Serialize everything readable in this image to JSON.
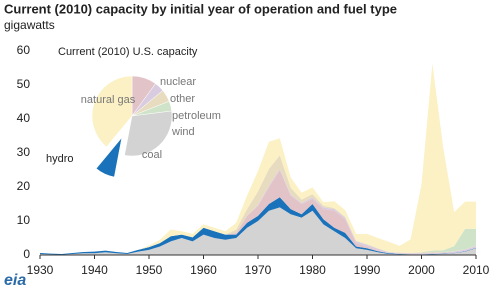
{
  "title": "Current (2010) capacity by initial  year of operation and fuel type",
  "subtitle": "gigawatts",
  "logo": "eia",
  "chart_data": [
    {
      "type": "stacked-area",
      "x": [
        1930,
        1932,
        1934,
        1936,
        1938,
        1940,
        1942,
        1944,
        1946,
        1948,
        1950,
        1952,
        1954,
        1956,
        1958,
        1960,
        1962,
        1964,
        1966,
        1968,
        1970,
        1972,
        1974,
        1976,
        1978,
        1980,
        1982,
        1984,
        1986,
        1988,
        1990,
        1992,
        1994,
        1996,
        1998,
        2000,
        2002,
        2004,
        2006,
        2008,
        2010
      ],
      "xlim": [
        1930,
        2010
      ],
      "xticks": [
        1930,
        1940,
        1950,
        1960,
        1970,
        1980,
        1990,
        2000,
        2010
      ],
      "ylim": [
        0,
        60
      ],
      "yticks": [
        0,
        10,
        20,
        30,
        40,
        50,
        60
      ],
      "series": [
        {
          "color": "#d3d3d3",
          "values": [
            0.3,
            0.2,
            0.1,
            0.3,
            0.5,
            0.5,
            0.8,
            0.5,
            0.3,
            1,
            1.5,
            2.5,
            4,
            5,
            4,
            6,
            5,
            4.5,
            5,
            8,
            10,
            13,
            14,
            12,
            11,
            13,
            9,
            7,
            5,
            2,
            1.5,
            0.8,
            0.3,
            0.2,
            0.1,
            0.1,
            0.2,
            0.3,
            0.5,
            1,
            2
          ]
        },
        {
          "color": "#1a72bb",
          "values": [
            0.3,
            0.2,
            0.2,
            0.3,
            0.4,
            0.5,
            0.5,
            0.4,
            0.3,
            0.5,
            0.8,
            1,
            1.5,
            1,
            1.2,
            2,
            2,
            1.5,
            1,
            1.5,
            1.5,
            2,
            3,
            1.5,
            1,
            2,
            1.5,
            1,
            1.5,
            0.5,
            0.5,
            0.3,
            0.2,
            0.1,
            0.1,
            0.1,
            0.1,
            0.1,
            0.1,
            0.1,
            0.1
          ]
        },
        {
          "color": "#e2c4c8",
          "values": [
            0,
            0,
            0,
            0,
            0,
            0,
            0,
            0,
            0,
            0,
            0,
            0,
            0,
            0,
            0,
            0,
            0,
            0,
            0.5,
            2,
            3,
            5,
            8,
            4,
            3,
            1.5,
            3,
            5,
            4,
            1,
            0.5,
            0.3,
            0,
            0,
            0,
            0,
            0,
            0,
            0,
            0,
            0
          ]
        },
        {
          "color": "#d9cce0",
          "values": [
            0,
            0,
            0,
            0,
            0,
            0,
            0,
            0,
            0,
            0,
            0,
            0,
            0,
            0,
            0,
            0,
            0,
            0,
            0,
            0,
            0.2,
            0.3,
            0.3,
            0.3,
            0.3,
            0.4,
            0.5,
            0.5,
            0.5,
            0.5,
            0.5,
            0.4,
            0.3,
            0.3,
            0.3,
            0.3,
            0.3,
            0.3,
            0.4,
            0.5,
            0.5
          ]
        },
        {
          "color": "#e8dcc0",
          "values": [
            0,
            0,
            0,
            0,
            0,
            0,
            0,
            0,
            0,
            0,
            0,
            0,
            0,
            0,
            0,
            0,
            0,
            0,
            1,
            2,
            4,
            5,
            4,
            2,
            1,
            1,
            0.5,
            0.3,
            0.2,
            0.2,
            0.2,
            0.2,
            0.1,
            0.1,
            0.1,
            0.2,
            0.3,
            0.2,
            0.1,
            0.1,
            0.1
          ]
        },
        {
          "color": "#cfe3c8",
          "values": [
            0,
            0,
            0,
            0,
            0,
            0,
            0,
            0,
            0,
            0,
            0,
            0,
            0,
            0,
            0,
            0,
            0,
            0,
            0,
            0,
            0,
            0,
            0,
            0,
            0,
            0,
            0,
            0,
            0,
            0,
            0,
            0,
            0,
            0,
            0,
            0.1,
            0.4,
            0.5,
            1.5,
            6,
            5
          ]
        },
        {
          "color": "#fbf1c4",
          "values": [
            0,
            0,
            0,
            0,
            0,
            0,
            0,
            0,
            0,
            0,
            0.5,
            1,
            2,
            1,
            1,
            1,
            1,
            1,
            2,
            4,
            6,
            8,
            5,
            3,
            2,
            2,
            1,
            2,
            2,
            2,
            3,
            3,
            3,
            2,
            4,
            20,
            55,
            30,
            10,
            8,
            8
          ]
        }
      ]
    },
    {
      "type": "pie",
      "title": "Current (2010) U.S. capacity",
      "categories": [
        "nuclear",
        "other",
        "petroleum",
        "wind",
        "coal",
        "hydro",
        "natural gas"
      ],
      "values": [
        10,
        4,
        5,
        4,
        30,
        8,
        39
      ],
      "colors": [
        "#e2c4c8",
        "#d9cce0",
        "#e8dcc0",
        "#cfe3c8",
        "#d3d3d3",
        "#1a72bb",
        "#fbf1c4"
      ],
      "exploded": "hydro"
    }
  ]
}
